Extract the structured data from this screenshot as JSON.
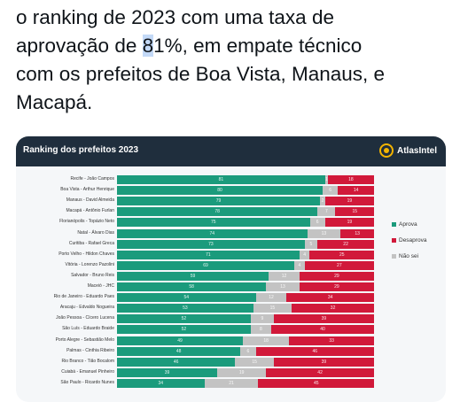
{
  "tweet": {
    "line1": "o ranking de 2023 com uma taxa de",
    "line2_before": "aprovação de ",
    "line2_highlight": "8",
    "line2_after": "1%, em empate técnico",
    "line3": "com os prefeitos de Boa Vista, Manaus, e",
    "line4": "Macapá."
  },
  "card": {
    "title": "Ranking dos prefeitos 2023",
    "brand": "AtlasIntel"
  },
  "colors": {
    "aprova": "#1b9b7c",
    "naosei": "#c3c3c3",
    "desaprova": "#d1193a",
    "header": "#1f2e3d"
  },
  "legend": [
    {
      "label": "Aprova",
      "color": "#1b9b7c"
    },
    {
      "label": "Desaprova",
      "color": "#d1193a"
    },
    {
      "label": "Não sei",
      "color": "#c3c3c3"
    }
  ],
  "chart_data": {
    "type": "bar",
    "categories": [
      "Recife - João Campos",
      "Boa Vista - Arthur Henrique",
      "Manaus - David Almeida",
      "Macapá - Antônio Furlan",
      "Florianópolis - Topázio Neto",
      "Natal - Álvaro Dias",
      "Curitiba - Rafael Greca",
      "Porto Velho - Hildon Chaves",
      "Vitória - Lorenzo Pazolini",
      "Salvador - Bruno Reis",
      "Maceió - JHC",
      "Rio de Janeiro - Eduardo Paes",
      "Aracaju - Edvaldo Nogueira",
      "João Pessoa - Cícero Lucena",
      "São Luís - Eduardo Braide",
      "Porto Alegre - Sebastião Melo",
      "Palmas - Cinthia Ribeiro",
      "Rio Branco - Tião Bocalom",
      "Cuiabá - Emanuel Pinheiro",
      "São Paulo - Ricardo Nunes"
    ],
    "series": [
      {
        "name": "Aprova",
        "values": [
          81,
          80,
          79,
          78,
          75,
          74,
          73,
          71,
          69,
          59,
          58,
          54,
          53,
          52,
          52,
          49,
          48,
          46,
          39,
          34
        ]
      },
      {
        "name": "Não sei",
        "values": [
          1,
          6,
          2,
          7,
          6,
          13,
          5,
          4,
          4,
          12,
          13,
          12,
          15,
          9,
          8,
          18,
          6,
          15,
          19,
          21
        ]
      },
      {
        "name": "Desaprova",
        "values": [
          18,
          14,
          19,
          15,
          19,
          13,
          22,
          25,
          27,
          29,
          29,
          34,
          32,
          39,
          40,
          33,
          46,
          39,
          42,
          45
        ]
      }
    ],
    "xlim": [
      0,
      100
    ]
  }
}
